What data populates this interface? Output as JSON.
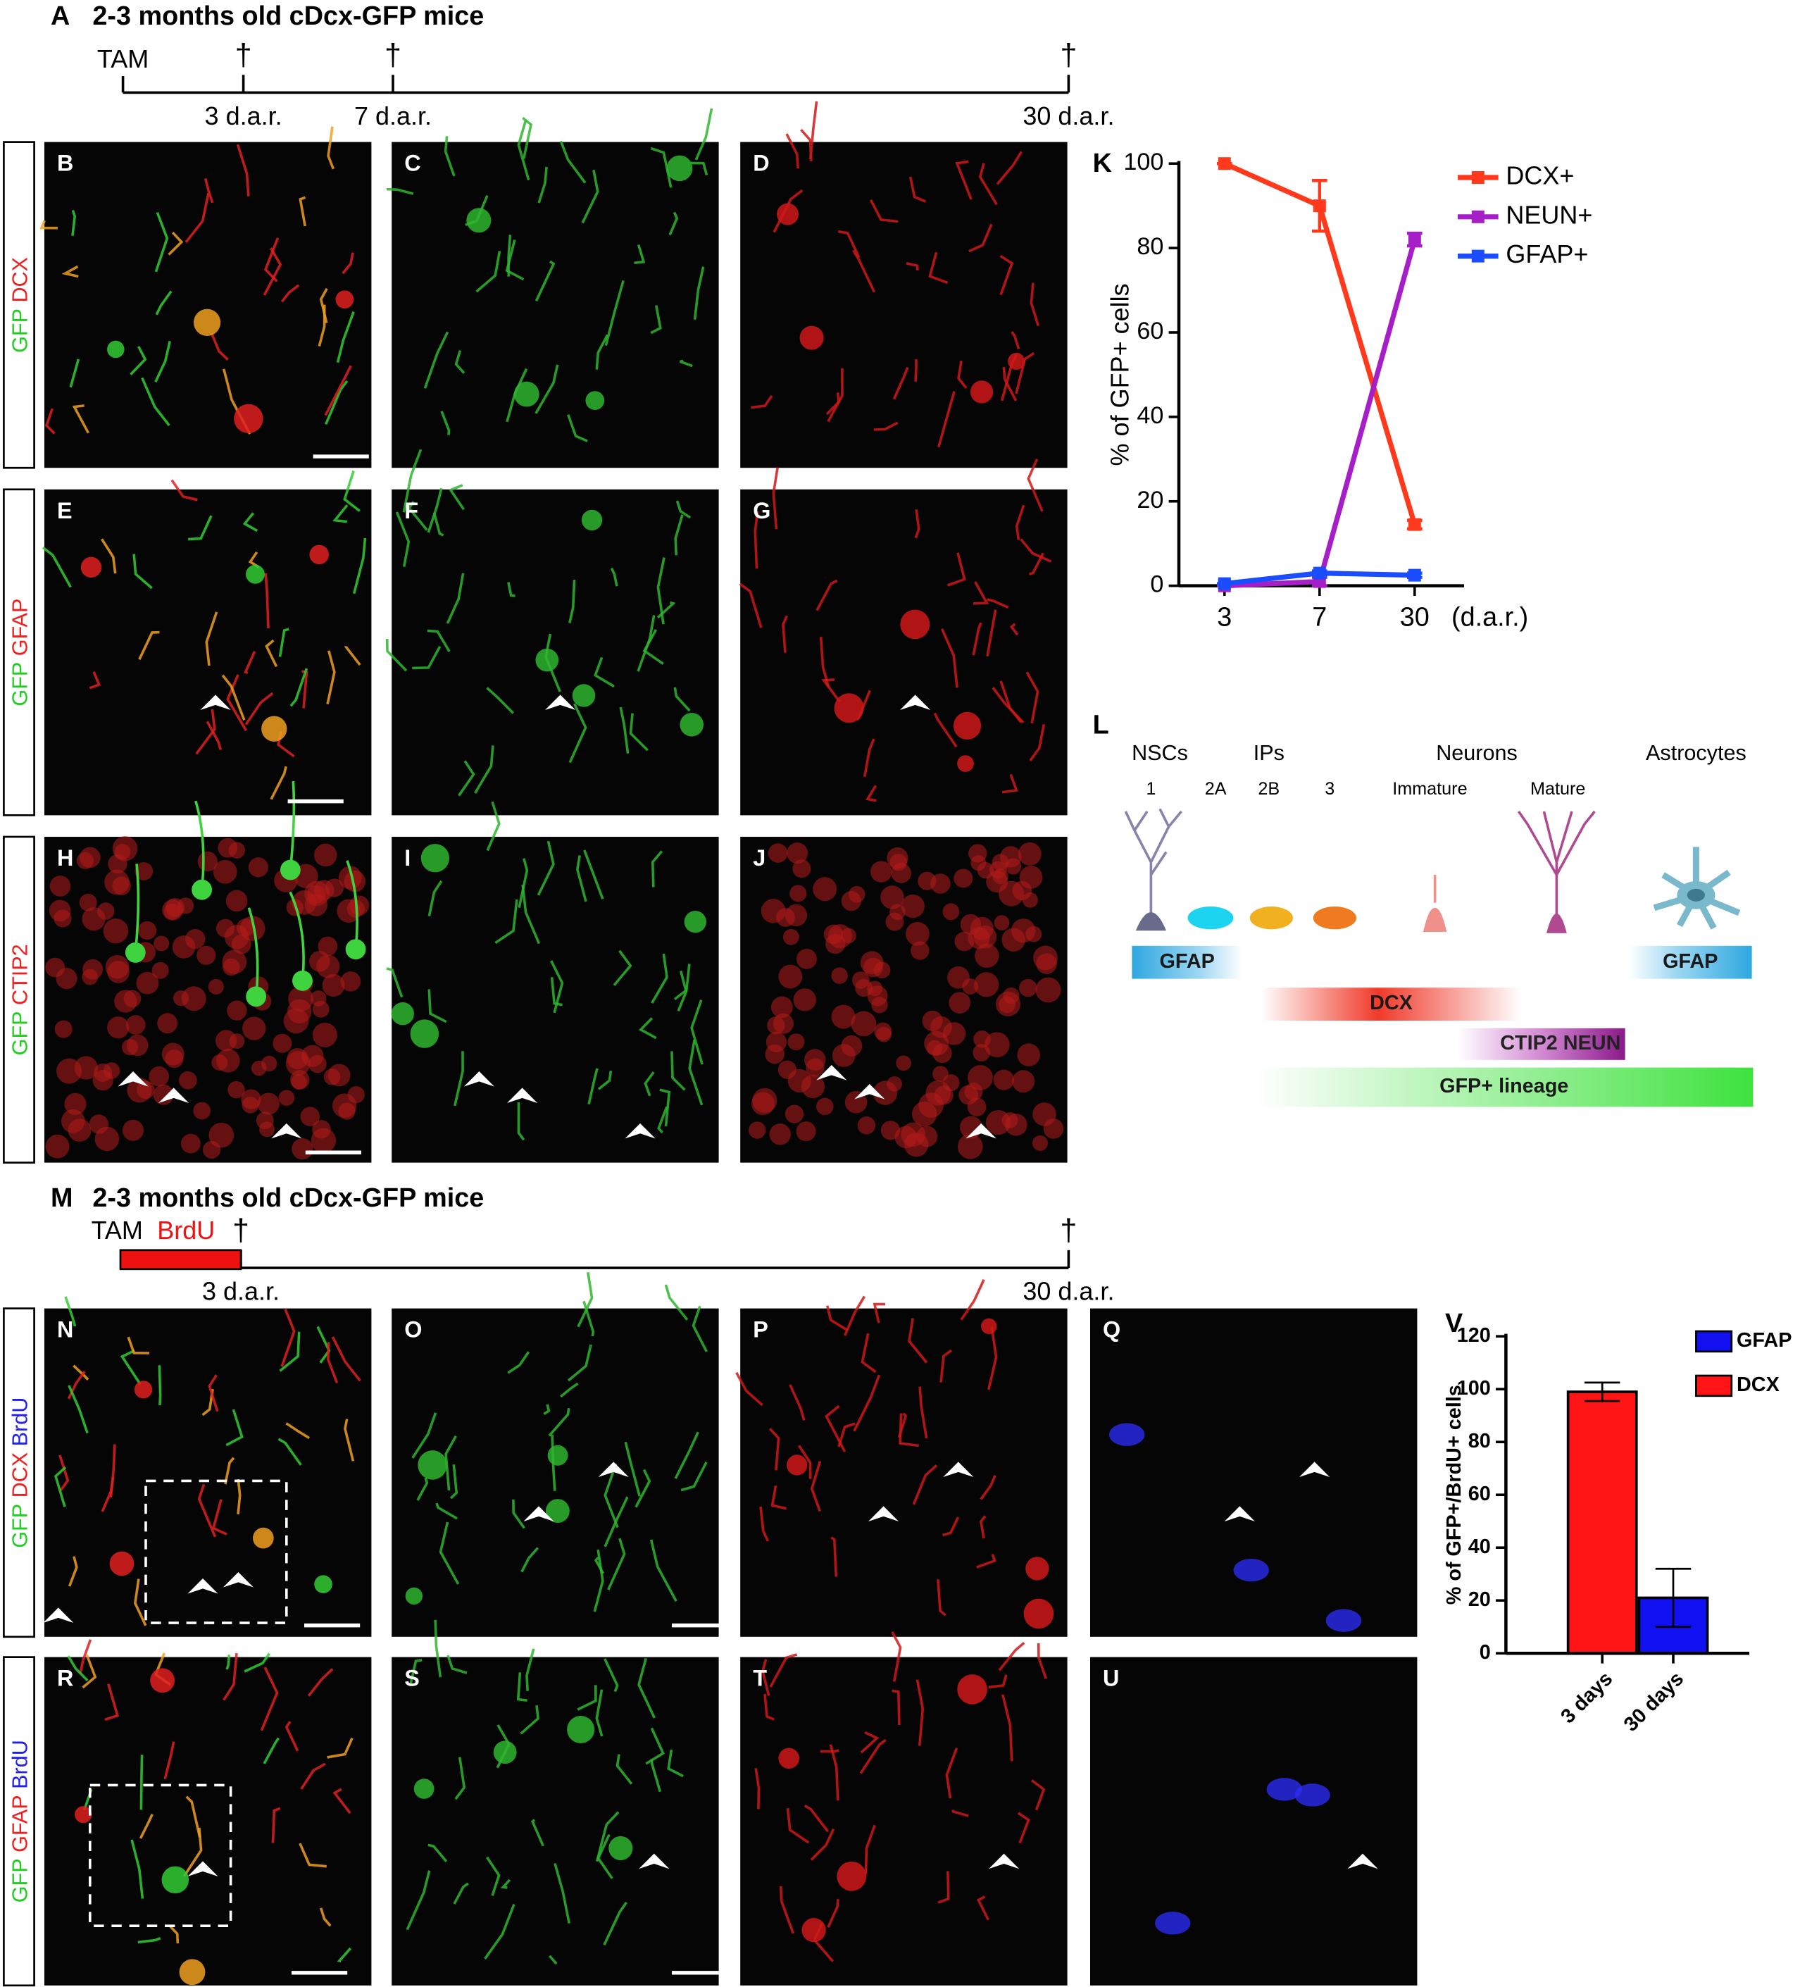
{
  "timeline_a": {
    "letter": "A",
    "title": "2-3 months old cDcx-GFP mice",
    "start": "TAM",
    "points": [
      {
        "label": "3 d.a.r.",
        "symbol": "†"
      },
      {
        "label": "7 d.a.r.",
        "symbol": "†"
      },
      {
        "label": "30 d.a.r.",
        "symbol": "†"
      }
    ]
  },
  "image_rows": [
    {
      "stains": [
        {
          "text": "GFP",
          "color": "#22cc22"
        },
        {
          "text": "DCX",
          "color": "#ee2020"
        }
      ],
      "panels": [
        "B",
        "C",
        "D"
      ]
    },
    {
      "stains": [
        {
          "text": "GFP",
          "color": "#22cc22"
        },
        {
          "text": "GFAP",
          "color": "#ee2020"
        }
      ],
      "panels": [
        "E",
        "F",
        "G"
      ]
    },
    {
      "stains": [
        {
          "text": "GFP",
          "color": "#22cc22"
        },
        {
          "text": "CTIP2",
          "color": "#ee2020"
        }
      ],
      "panels": [
        "H",
        "I",
        "J"
      ]
    }
  ],
  "schematic": {
    "letter": "L",
    "groups": [
      "NSCs",
      "IPs",
      "Neurons",
      "Astrocytes"
    ],
    "stages": [
      "1",
      "2A",
      "2B",
      "3",
      "Immature",
      "Mature"
    ],
    "bars": [
      "GFAP",
      "GFAP",
      "DCX",
      "CTIP2  NEUN",
      "GFP+ lineage"
    ]
  },
  "timeline_m": {
    "letter": "M",
    "title": "2-3 months old cDcx-GFP mice",
    "start": "TAM",
    "treatment": "BrdU",
    "treatment_color": "#ee1111",
    "points": [
      {
        "label": "3 d.a.r.",
        "symbol": "†"
      },
      {
        "label": "30 d.a.r.",
        "symbol": "†"
      }
    ]
  },
  "image_rows_2": [
    {
      "stains": [
        {
          "text": "GFP",
          "color": "#22cc22"
        },
        {
          "text": "DCX",
          "color": "#ee2020"
        },
        {
          "text": "BrdU",
          "color": "#2020ee"
        }
      ],
      "panels": [
        "N",
        "O",
        "P",
        "Q"
      ]
    },
    {
      "stains": [
        {
          "text": "GFP",
          "color": "#22cc22"
        },
        {
          "text": "GFAP",
          "color": "#ee2020"
        },
        {
          "text": "BrdU",
          "color": "#2020ee"
        }
      ],
      "panels": [
        "R",
        "S",
        "T",
        "U"
      ]
    }
  ],
  "chart_data": [
    {
      "type": "line",
      "letter": "K",
      "categories": [
        "3",
        "7",
        "30"
      ],
      "x_label": "(d.a.r.)",
      "y_label": "% of GFP+ cells",
      "ylim": [
        0,
        100
      ],
      "yticks": [
        0,
        20,
        40,
        60,
        80,
        100
      ],
      "legend": "upper right",
      "series": [
        {
          "name": "DCX+",
          "color": "#ff3a1c",
          "values": [
            100,
            90,
            14.5
          ],
          "errors": [
            0,
            6,
            1
          ]
        },
        {
          "name": "NEUN+",
          "color": "#a51ec8",
          "values": [
            0,
            1,
            82
          ],
          "errors": [
            0,
            1,
            1.5
          ]
        },
        {
          "name": "GFAP+",
          "color": "#1a4dff",
          "values": [
            0.5,
            3,
            2.5
          ],
          "errors": [
            0,
            0.5,
            0.5
          ]
        }
      ]
    },
    {
      "type": "bar",
      "letter": "V",
      "categories": [
        "3 days",
        "30 days"
      ],
      "y_label": "% of GFP+/BrdU+ cells",
      "ylim": [
        0,
        120
      ],
      "yticks": [
        0,
        20,
        40,
        60,
        80,
        100,
        120
      ],
      "legend": "upper right",
      "series": [
        {
          "name": "GFAP",
          "color": "#1010f0",
          "values": [
            null,
            21
          ],
          "errors": [
            null,
            11
          ]
        },
        {
          "name": "DCX",
          "color": "#ff1515",
          "values": [
            99,
            null
          ],
          "errors": [
            3.5,
            null
          ]
        }
      ]
    }
  ]
}
